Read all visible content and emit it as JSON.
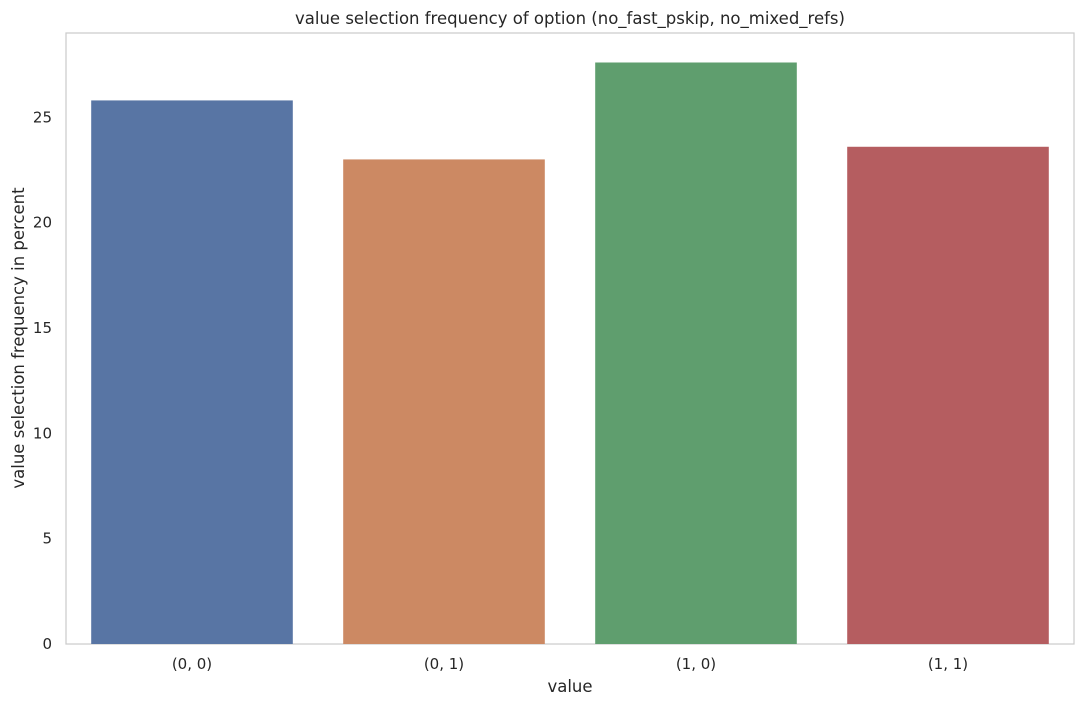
{
  "chart_data": {
    "type": "bar",
    "title": "value selection frequency of option (no_fast_pskip, no_mixed_refs)",
    "xlabel": "value",
    "ylabel": "value selection frequency in percent",
    "categories": [
      "(0, 0)",
      "(0, 1)",
      "(1, 0)",
      "(1, 1)"
    ],
    "values": [
      25.8,
      23.0,
      27.6,
      23.6
    ],
    "colors": [
      "#5875a4",
      "#cc8963",
      "#5f9e6e",
      "#b55d60"
    ],
    "ylim": [
      0,
      29
    ],
    "yticks": [
      0,
      5,
      10,
      15,
      20,
      25
    ],
    "grid": false,
    "legend": "none"
  }
}
